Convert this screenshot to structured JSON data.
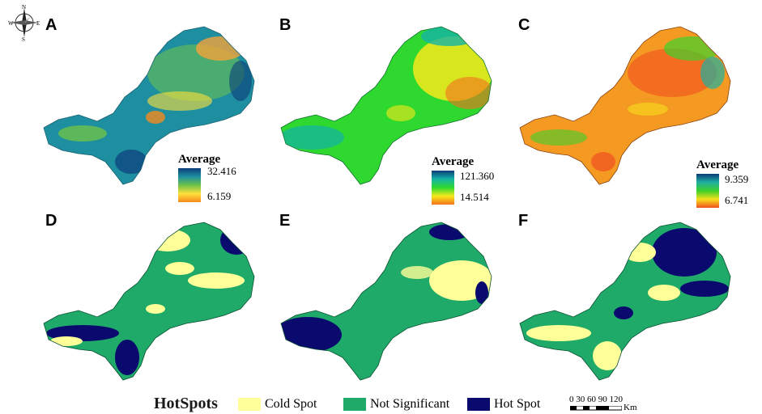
{
  "compass": {
    "n": "N",
    "s": "S",
    "e": "E",
    "w": "W"
  },
  "panels": [
    {
      "id": "A",
      "legend_title": "Average",
      "high": "32.416",
      "low": "6.159"
    },
    {
      "id": "B",
      "legend_title": "Average",
      "high": "121.360",
      "low": "14.514"
    },
    {
      "id": "C",
      "legend_title": "Average",
      "high": "9.359",
      "low": "6.741"
    },
    {
      "id": "D"
    },
    {
      "id": "E"
    },
    {
      "id": "F"
    }
  ],
  "hotspots": {
    "title": "HotSpots",
    "items": [
      {
        "label": "Cold Spot",
        "color": "#ffff99"
      },
      {
        "label": "Not Significant",
        "color": "#1faa6a"
      },
      {
        "label": "Hot Spot",
        "color": "#0a0a6e"
      }
    ]
  },
  "scale": {
    "ticks": "0 30 60 90 120",
    "unit": "Km"
  },
  "colors": {
    "ramp_A": [
      "#0b3d7a",
      "#1e8fa0",
      "#6cc24a",
      "#ffe13a",
      "#f48a1e"
    ],
    "ramp_B": [
      "#0b3d7a",
      "#14b4a6",
      "#2ed82e",
      "#f6ea1a",
      "#f4701e"
    ],
    "ramp_C": [
      "#0b3d7a",
      "#20b0a0",
      "#3ed12c",
      "#f7e01c",
      "#f05020"
    ]
  }
}
